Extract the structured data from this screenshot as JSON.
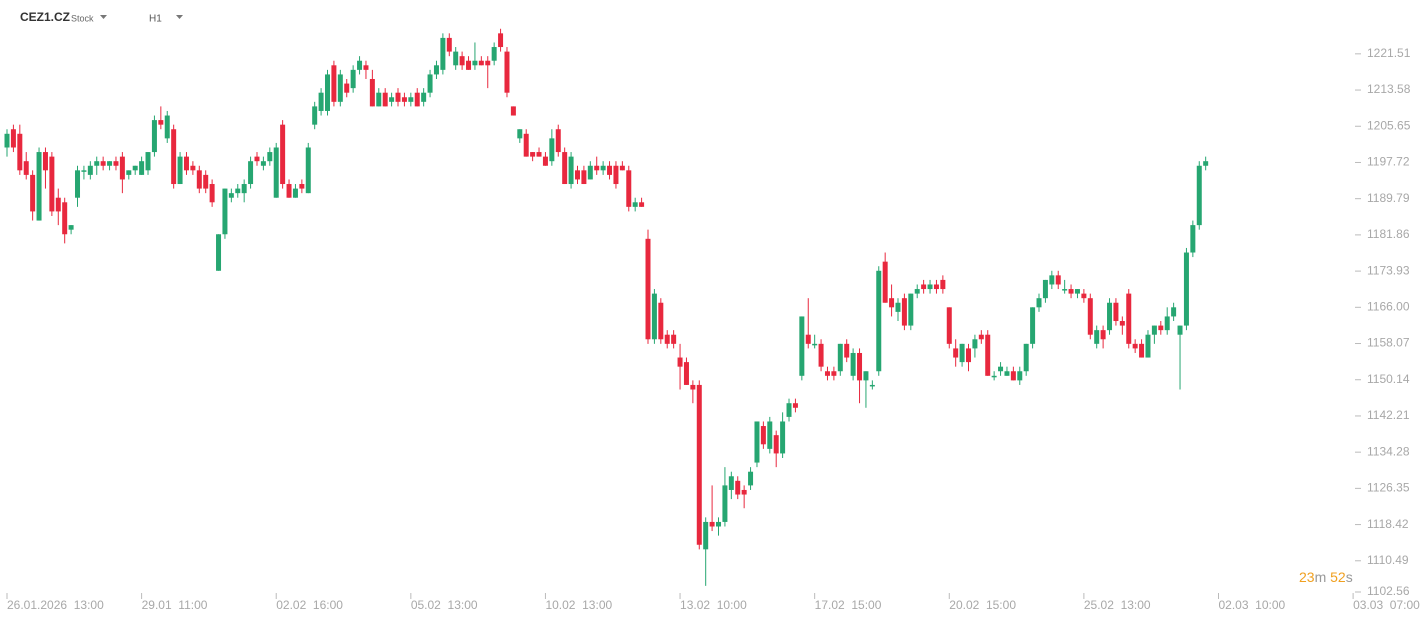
{
  "header": {
    "symbol": "CEZ1.CZ",
    "kind": "Stock",
    "interval": "H1"
  },
  "countdown": [
    "23",
    "m",
    "52",
    "s"
  ],
  "chart_data": {
    "type": "candlestick",
    "up_color": "#26a671",
    "down_color": "#e8283e",
    "ylim": [
      1102.56,
      1233.3
    ],
    "yticks": [
      1221.51,
      1213.58,
      1205.65,
      1197.72,
      1189.79,
      1181.86,
      1173.93,
      {
        "value": 1166,
        "label": "1166.00"
      },
      1158.07,
      1150.14,
      1142.21,
      1134.28,
      1126.35,
      1118.42,
      1110.49,
      1102.56
    ],
    "categories": [
      "26.01.2026  13:00",
      null,
      null,
      null,
      null,
      null,
      null,
      null,
      null,
      null,
      null,
      null,
      null,
      null,
      null,
      null,
      null,
      null,
      null,
      null,
      null,
      "29.01  11:00",
      null,
      null,
      null,
      null,
      null,
      null,
      null,
      null,
      null,
      null,
      null,
      null,
      null,
      null,
      null,
      null,
      null,
      null,
      null,
      null,
      "02.02  16:00",
      null,
      null,
      null,
      null,
      null,
      null,
      null,
      null,
      null,
      null,
      null,
      null,
      null,
      null,
      null,
      null,
      null,
      null,
      null,
      null,
      "05.02  13:00",
      null,
      null,
      null,
      null,
      null,
      null,
      null,
      null,
      null,
      null,
      null,
      null,
      null,
      null,
      null,
      null,
      null,
      null,
      null,
      null,
      "10.02  13:00",
      null,
      null,
      null,
      null,
      null,
      null,
      null,
      null,
      null,
      null,
      null,
      null,
      null,
      null,
      null,
      null,
      null,
      null,
      null,
      null,
      "13.02  10:00",
      null,
      null,
      null,
      null,
      null,
      null,
      null,
      null,
      null,
      null,
      null,
      null,
      null,
      null,
      null,
      null,
      null,
      null,
      null,
      null,
      "17.02  15:00",
      null,
      null,
      null,
      null,
      null,
      null,
      null,
      null,
      null,
      null,
      null,
      null,
      null,
      null,
      null,
      null,
      null,
      null,
      null,
      null,
      "20.02  15:00",
      null,
      null,
      null,
      null,
      null,
      null,
      null,
      null,
      null,
      null,
      null,
      null,
      null,
      null,
      null,
      null,
      null,
      null,
      null,
      null,
      "25.02  13:00",
      null,
      null,
      null,
      null,
      null,
      null,
      null,
      null,
      null,
      null,
      null,
      null,
      null,
      null,
      null,
      null,
      null,
      null,
      null,
      null,
      "02.03  10:00",
      null,
      null,
      null,
      null,
      null,
      null,
      null,
      null,
      null,
      null,
      null,
      null,
      null,
      null,
      null,
      null,
      null,
      null,
      null,
      null,
      "03.03  07:00"
    ],
    "open": [
      1201,
      1205,
      1204,
      1198,
      1195,
      1185,
      1200,
      1199,
      1190,
      1189,
      1183,
      1190,
      1196,
      1195,
      1197,
      1198,
      1197,
      1198,
      1199,
      1195,
      1196,
      1195,
      1196,
      1200,
      1207,
      1203,
      1205,
      1193,
      1199,
      1197,
      1196,
      1195,
      1193,
      1174,
      1182,
      1190,
      1191,
      1191,
      1193,
      1199,
      1197,
      1198,
      1190,
      1206,
      1193,
      1190,
      1193,
      1191,
      1206,
      1209,
      1209,
      1219,
      1211,
      1215,
      1214,
      1218,
      1219,
      1216,
      1210,
      1213,
      1211,
      1213,
      1212,
      1211,
      1213,
      1211,
      1213,
      1217,
      1218,
      1225,
      1219,
      1221,
      1220,
      1219,
      1220,
      1220,
      1220,
      1226,
      1222,
      1210,
      1203,
      1204,
      1200,
      1200,
      1199,
      1198,
      1205,
      1200,
      1193,
      1196,
      1196,
      1194,
      1197,
      1196,
      1197,
      1197,
      1197,
      1196,
      1188,
      1189,
      1181,
      1159,
      1167,
      1160,
      1160,
      1155,
      1154,
      1149,
      1149,
      1113,
      1119,
      1118,
      1119,
      1126,
      1128,
      1126,
      1127,
      1132,
      1140,
      1135,
      1138,
      1134,
      1142,
      1145,
      1151,
      1160,
      1158,
      1158,
      1152,
      1152,
      1152,
      1158,
      1151,
      1156,
      1150,
      1149,
      1152,
      1176,
      1168,
      1165,
      1168,
      1162,
      1169,
      1171,
      1170,
      1171,
      1172,
      1166,
      1157,
      1154,
      1157,
      1157,
      1160,
      1160,
      1151,
      1152,
      1151,
      1152,
      1150,
      1152,
      1158,
      1166,
      1168,
      1171,
      1173,
      1170,
      1170,
      1169,
      1169,
      1168,
      1158,
      1161,
      1161,
      1167,
      1163,
      1169,
      1158,
      1158,
      1155,
      1160,
      1162,
      1161,
      1164,
      1160,
      1162,
      1178,
      1184,
      1197,
      null,
      null,
      null,
      null,
      null,
      null,
      null,
      null,
      null,
      null,
      null,
      null,
      null,
      null,
      null,
      null,
      null,
      null,
      null,
      null,
      null,
      null,
      null
    ],
    "high": [
      1205,
      1206,
      1206,
      1200,
      1196,
      1201,
      1201,
      1200,
      1192,
      1190,
      1184,
      1197,
      1197,
      1198,
      1199,
      1199,
      1198,
      1199,
      1200,
      1196,
      1197,
      1199,
      1200,
      1208,
      1210,
      1209,
      1206,
      1200,
      1200,
      1198,
      1197,
      1196,
      1194,
      1182,
      1192,
      1192,
      1193,
      1194,
      1199,
      1200,
      1199,
      1201,
      1202,
      1207,
      1194,
      1193,
      1194,
      1202,
      1211,
      1214,
      1218,
      1220,
      1218,
      1216,
      1219,
      1221,
      1220,
      1218,
      1214,
      1214,
      1213,
      1214,
      1213,
      1213,
      1214,
      1214,
      1218,
      1220,
      1226,
      1226,
      1223,
      1222,
      1221,
      1224,
      1221,
      1221,
      1224,
      1227,
      1223,
      1210,
      1205,
      1205,
      1200,
      1201,
      1200,
      1205,
      1206,
      1201,
      1200,
      1197,
      1197,
      1198,
      1199,
      1198,
      1198,
      1198,
      1198,
      1197,
      1190,
      1190,
      1183,
      1170,
      1168,
      1161,
      1161,
      1158,
      1155,
      1150,
      1150,
      1120,
      1127,
      1120,
      1131,
      1130,
      1129,
      1127,
      1131,
      1141,
      1141,
      1142,
      1139,
      1143,
      1146,
      1146,
      1164,
      1168,
      1160,
      1159,
      1153,
      1153,
      1158,
      1159,
      1157,
      1157,
      1152,
      1150,
      1175,
      1178,
      1171,
      1168,
      1169,
      1169,
      1171,
      1172,
      1172,
      1172,
      1173,
      1166,
      1159,
      1158,
      1158,
      1160,
      1161,
      1161,
      1152,
      1154,
      1153,
      1153,
      1153,
      1158,
      1166,
      1169,
      1172,
      1174,
      1174,
      1172,
      1171,
      1170,
      1170,
      1169,
      1162,
      1162,
      1168,
      1168,
      1164,
      1170,
      1159,
      1159,
      1161,
      1162,
      1163,
      1166,
      1167,
      1162,
      1179,
      1185,
      1198,
      1199,
      null,
      null,
      null,
      null,
      null,
      null,
      null,
      null,
      null,
      null,
      null,
      null,
      null,
      null,
      null,
      null,
      null,
      null,
      null,
      null,
      null,
      null,
      null
    ],
    "low": [
      1199,
      1200,
      1195,
      1194,
      1185,
      1185,
      1192,
      1186,
      1184,
      1180,
      1182,
      1188,
      1194,
      1194,
      1195,
      1196,
      1196,
      1196,
      1191,
      1194,
      1195,
      1195,
      1195,
      1199,
      1205,
      1202,
      1192,
      1193,
      1195,
      1195,
      1191,
      1191,
      1188,
      1174,
      1181,
      1189,
      1190,
      1189,
      1192,
      1197,
      1196,
      1197,
      1190,
      1192,
      1190,
      1190,
      1191,
      1191,
      1205,
      1208,
      1208,
      1210,
      1210,
      1212,
      1213,
      1217,
      1216,
      1210,
      1210,
      1210,
      1210,
      1210,
      1210,
      1210,
      1210,
      1210,
      1212,
      1216,
      1217,
      1221,
      1218,
      1218,
      1218,
      1218,
      1219,
      1214,
      1219,
      1222,
      1212,
      1208,
      1202,
      1199,
      1198,
      1199,
      1197,
      1197,
      1199,
      1193,
      1192,
      1193,
      1193,
      1194,
      1195,
      1195,
      1194,
      1192,
      1196,
      1187,
      1187,
      1188,
      1158,
      1158,
      1158,
      1157,
      1157,
      1148,
      1149,
      1145,
      1113,
      1105,
      1117,
      1116,
      1118,
      1124,
      1124,
      1122,
      1126,
      1131,
      1135,
      1134,
      1131,
      1133,
      1141,
      1143,
      1150,
      1157,
      1157,
      1152,
      1150,
      1150,
      1151,
      1154,
      1150,
      1145,
      1144,
      1148,
      1151,
      1167,
      1164,
      1163,
      1161,
      1161,
      1168,
      1169,
      1169,
      1169,
      1169,
      1157,
      1153,
      1153,
      1152,
      1155,
      1158,
      1151,
      1150,
      1151,
      1151,
      1150,
      1149,
      1151,
      1157,
      1165,
      1167,
      1170,
      1170,
      1169,
      1168,
      1168,
      1167,
      1159,
      1157,
      1157,
      1160,
      1162,
      1160,
      1157,
      1156,
      1155,
      1155,
      1158,
      1160,
      1160,
      1163,
      1148,
      1161,
      1177,
      1183,
      1196,
      null,
      null,
      null,
      null,
      null,
      null,
      null,
      null,
      null,
      null,
      null,
      null,
      null,
      null,
      null,
      null,
      null,
      null,
      null,
      null,
      null,
      null,
      null
    ],
    "close": [
      1204,
      1201,
      1196,
      1195,
      1187,
      1200,
      1196,
      1187,
      1187,
      1182,
      1184,
      1196,
      1196,
      1197,
      1198,
      1197,
      1198,
      1197,
      1194,
      1196,
      1197,
      1198,
      1200,
      1207,
      1206,
      1208,
      1193,
      1199,
      1196,
      1196,
      1192,
      1192,
      1189,
      1182,
      1192,
      1191,
      1192,
      1193,
      1198,
      1198,
      1198,
      1200,
      1201,
      1193,
      1190,
      1192,
      1192,
      1201,
      1210,
      1213,
      1217,
      1211,
      1217,
      1213,
      1218,
      1220,
      1218,
      1210,
      1213,
      1210,
      1212,
      1211,
      1211,
      1212,
      1210,
      1213,
      1217,
      1219,
      1225,
      1222,
      1222,
      1219,
      1218,
      1220,
      1219,
      1219,
      1223,
      1223,
      1213,
      1208,
      1205,
      1199,
      1199,
      1199,
      1197,
      1203,
      1200,
      1193,
      1199,
      1194,
      1193,
      1197,
      1196,
      1197,
      1195,
      1193,
      1196,
      1188,
      1189,
      1188,
      1159,
      1169,
      1159,
      1158,
      1158,
      1153,
      1149,
      1148,
      1114,
      1119,
      1118,
      1119,
      1127,
      1129,
      1125,
      1125,
      1130,
      1141,
      1136,
      1141,
      1134,
      1141,
      1145,
      1144,
      1164,
      1158,
      1158,
      1153,
      1151,
      1151,
      1158,
      1155,
      1156,
      1150,
      1152,
      1149,
      1174,
      1167,
      1166,
      1167,
      1162,
      1169,
      1170,
      1170,
      1171,
      1170,
      1170,
      1158,
      1155,
      1158,
      1154,
      1159,
      1159,
      1151,
      1151,
      1153,
      1152,
      1150,
      1152,
      1158,
      1166,
      1168,
      1172,
      1173,
      1171,
      1170,
      1169,
      1170,
      1168,
      1160,
      1161,
      1159,
      1167,
      1163,
      1162,
      1158,
      1157,
      1155,
      1160,
      1162,
      1161,
      1164,
      1166,
      1162,
      1178,
      1184,
      1197,
      1198,
      null,
      null,
      null,
      null,
      null,
      null,
      null,
      null,
      null,
      null,
      null,
      null,
      null,
      null,
      null,
      null,
      null,
      null,
      null,
      null,
      null,
      null,
      null
    ]
  }
}
